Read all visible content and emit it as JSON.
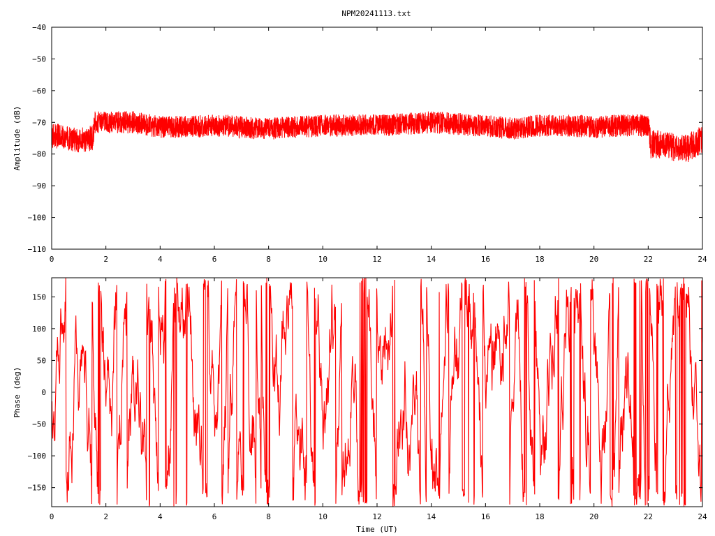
{
  "title": "NPM20241113.txt",
  "colors": {
    "series": "#ff0000",
    "axes": "#000000",
    "background": "#ffffff"
  },
  "chart_data": [
    {
      "type": "line",
      "title": "NPM20241113.txt",
      "xlabel": "",
      "ylabel": "Amplitude (dB)",
      "xlim": [
        0,
        24
      ],
      "ylim": [
        -110,
        -40
      ],
      "xticks": [
        0,
        2,
        4,
        6,
        8,
        10,
        12,
        14,
        16,
        18,
        20,
        22,
        24
      ],
      "xtick_labels": [
        "0",
        "2",
        "4",
        "6",
        "8",
        "10",
        "12",
        "14",
        "16",
        "18",
        "20",
        "22",
        "24"
      ],
      "yticks": [
        -40,
        -50,
        -60,
        -70,
        -80,
        -90,
        -100,
        -110
      ],
      "ytick_labels": [
        "-40",
        "-50",
        "-60",
        "-70",
        "-80",
        "-90",
        "-100",
        "-110"
      ],
      "grid": false,
      "series": [
        {
          "x": [
            0,
            0.5,
            1.0,
            1.5,
            1.6,
            2,
            3,
            4,
            5,
            6,
            6.5,
            7,
            8,
            9,
            10,
            11,
            12,
            13,
            14,
            15,
            15.5,
            16,
            17,
            18,
            19,
            20,
            21,
            22,
            22.1,
            22.5,
            23,
            23.5,
            24
          ],
          "y": [
            -74,
            -75,
            -75.5,
            -75,
            -70,
            -70,
            -70,
            -71.5,
            -71.5,
            -71,
            -71,
            -71.5,
            -72,
            -71.5,
            -71,
            -71,
            -71,
            -70.5,
            -70,
            -70.5,
            -71,
            -71,
            -72,
            -71,
            -71,
            -71.5,
            -71,
            -71,
            -77,
            -77,
            -78,
            -78,
            -75
          ],
          "spread": [
            4,
            4,
            4,
            4,
            3.5,
            3.5,
            3.5,
            3.5,
            3.5,
            3.5,
            3.5,
            3.5,
            3.5,
            3.5,
            3.5,
            3.5,
            3.5,
            3.5,
            3.5,
            3.5,
            3.5,
            3.5,
            3.5,
            3.5,
            3.5,
            3.5,
            3.5,
            3.5,
            4.5,
            4.5,
            4.5,
            4.5,
            4.5
          ]
        }
      ]
    },
    {
      "type": "line",
      "title": "",
      "xlabel": "Time (UT)",
      "ylabel": "Phase (deg)",
      "xlim": [
        0,
        24
      ],
      "ylim": [
        -180,
        180
      ],
      "xticks": [
        0,
        2,
        4,
        6,
        8,
        10,
        12,
        14,
        16,
        18,
        20,
        22,
        24
      ],
      "xtick_labels": [
        "0",
        "2",
        "4",
        "6",
        "8",
        "10",
        "12",
        "14",
        "16",
        "18",
        "20",
        "22",
        "24"
      ],
      "yticks": [
        150,
        100,
        50,
        0,
        -50,
        -100,
        -150
      ],
      "ytick_labels": [
        "150",
        "100",
        "50",
        "0",
        "-50",
        "-100",
        "-150"
      ],
      "grid": false,
      "series": [
        {
          "x": [
            0,
            1,
            2,
            3,
            4,
            5,
            6,
            7,
            8,
            9,
            10,
            11,
            12,
            13,
            14,
            15,
            16,
            17,
            18,
            19,
            20,
            21,
            22,
            23,
            24
          ],
          "y_min": [
            -180,
            -180,
            -180,
            -180,
            -180,
            -180,
            -180,
            -180,
            -180,
            -180,
            -180,
            -180,
            -180,
            -180,
            -180,
            -180,
            -180,
            -180,
            -180,
            -180,
            -180,
            -180,
            -180,
            -180,
            -180
          ],
          "y_max": [
            180,
            180,
            180,
            180,
            180,
            180,
            180,
            180,
            180,
            180,
            180,
            180,
            180,
            180,
            180,
            180,
            180,
            180,
            180,
            180,
            180,
            180,
            180,
            180,
            180
          ]
        }
      ]
    }
  ]
}
